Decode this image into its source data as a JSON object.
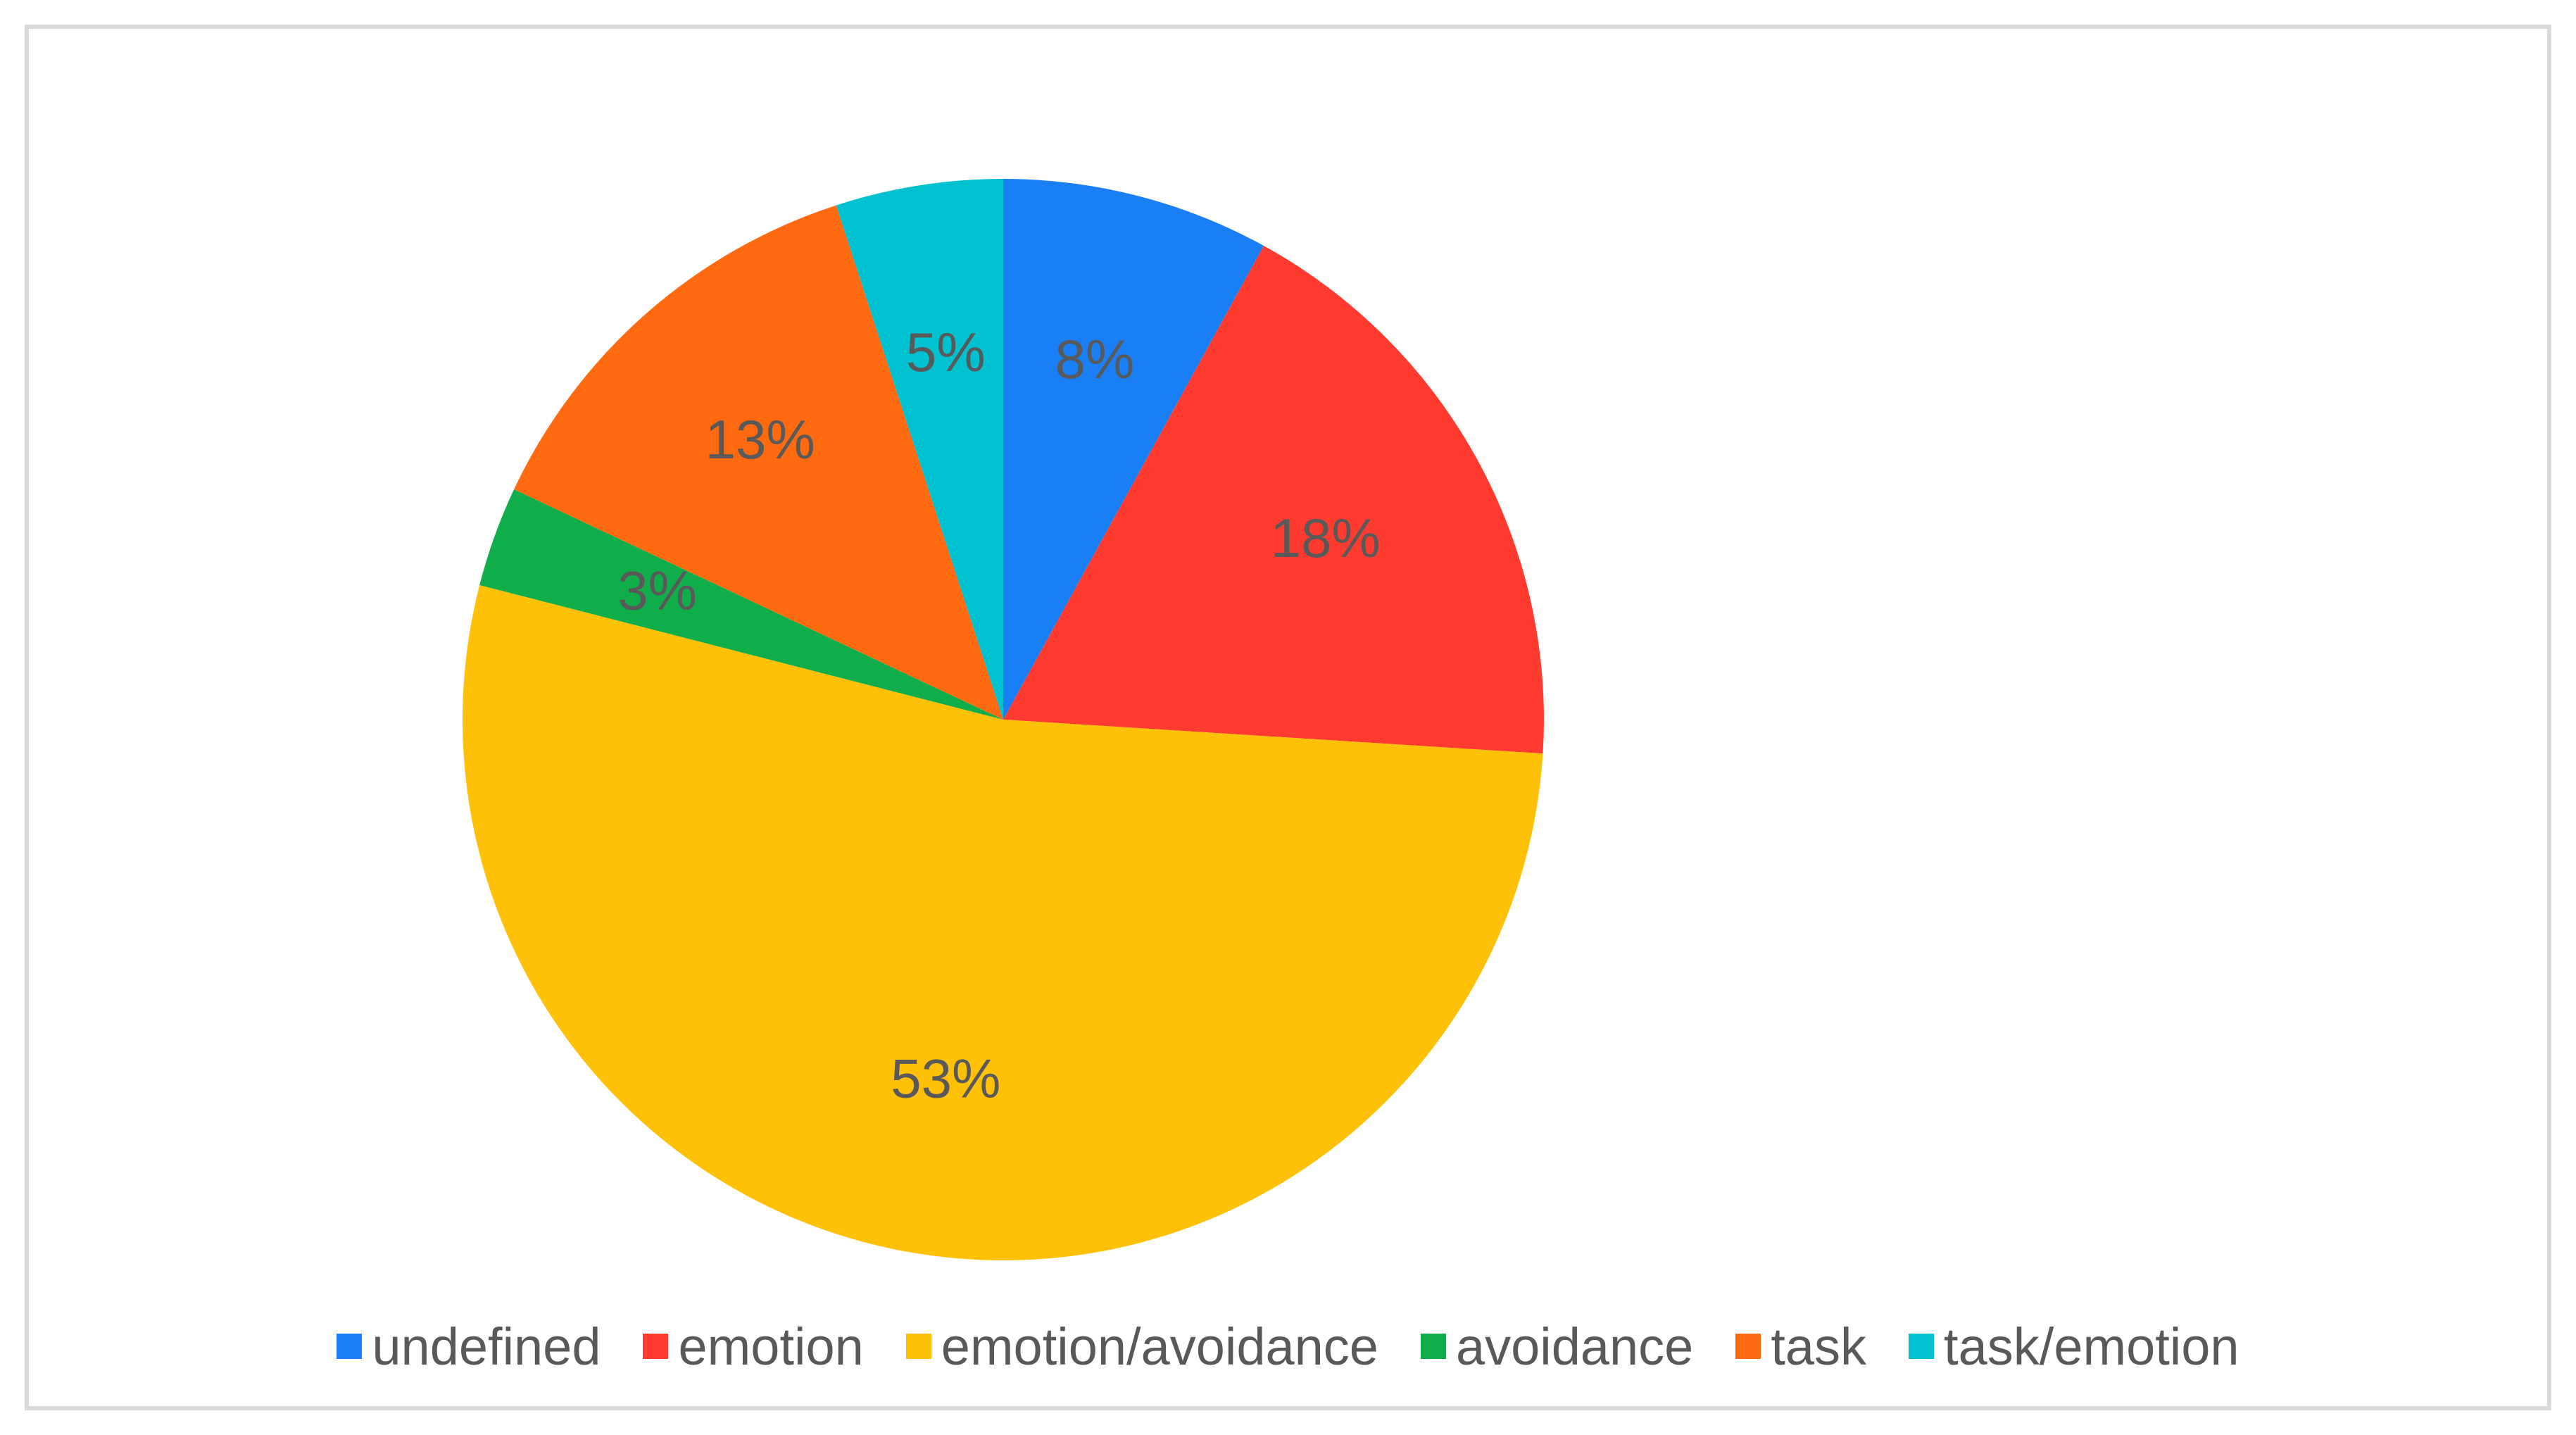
{
  "chart_data": {
    "type": "pie",
    "categories": [
      "undefined",
      "emotion",
      "emotion/avoidance",
      "avoidance",
      "task",
      "task/emotion"
    ],
    "values": [
      8,
      18,
      53,
      3,
      13,
      5
    ],
    "data_labels": [
      "8%",
      "18%",
      "53%",
      "3%",
      "13%",
      "5%"
    ],
    "colors": [
      "#1a7ef5",
      "#ff3b2f",
      "#ffc107",
      "#0fae4b",
      "#ff6a10",
      "#00c1cf"
    ],
    "legend_position": "bottom",
    "title": ""
  }
}
